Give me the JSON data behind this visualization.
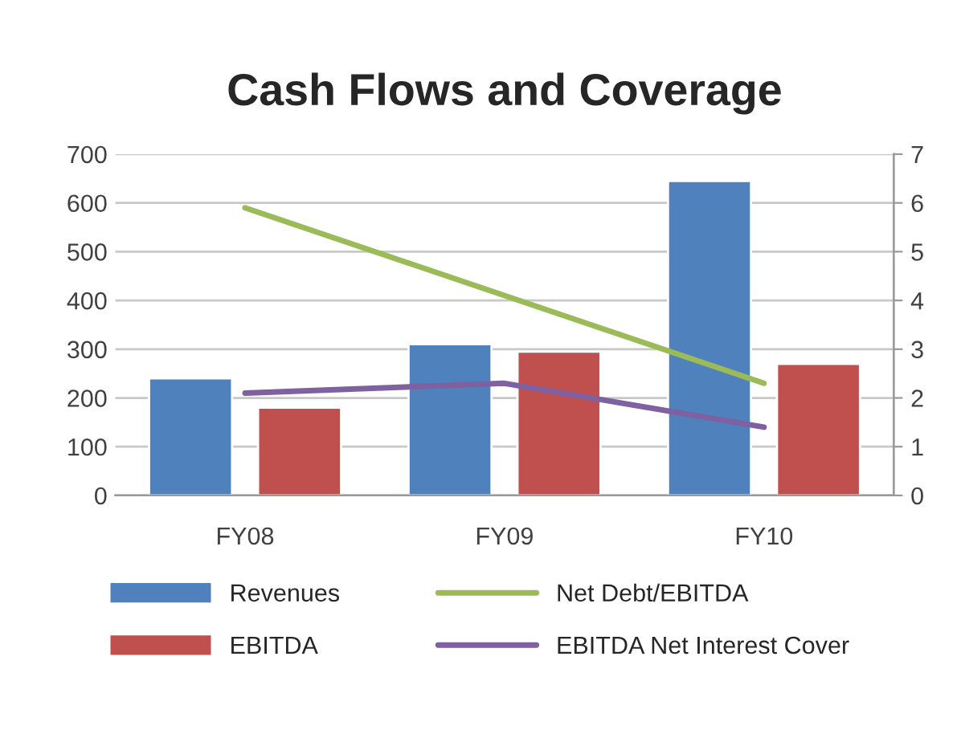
{
  "chart_data": {
    "type": "bar",
    "title": "Cash Flows and Coverage",
    "categories": [
      "FY08",
      "FY09",
      "FY10"
    ],
    "series": [
      {
        "name": "Revenues",
        "color": "#4f81bd",
        "values": [
          240,
          310,
          645
        ]
      },
      {
        "name": "EBITDA",
        "color": "#c0504d",
        "values": [
          180,
          295,
          270
        ]
      },
      {
        "name": "Net Debt/EBITDA",
        "type": "line",
        "axis": "y2",
        "color": "#9bbb59",
        "values": [
          5.9,
          4.1,
          2.3
        ]
      },
      {
        "name": "EBITDA Net Interest Cover",
        "type": "line",
        "axis": "y2",
        "color": "#7f60a0",
        "values": [
          2.1,
          2.3,
          1.4
        ]
      }
    ],
    "ylim": [
      0,
      700
    ],
    "yticks": [
      0,
      100,
      200,
      300,
      400,
      500,
      600,
      700
    ],
    "y2lim": [
      0,
      7
    ],
    "y2ticks": [
      0,
      1,
      2,
      3,
      4,
      5,
      6,
      7
    ],
    "grid": "y",
    "legend": "bottom",
    "marker": "none",
    "line_style": "solid"
  }
}
